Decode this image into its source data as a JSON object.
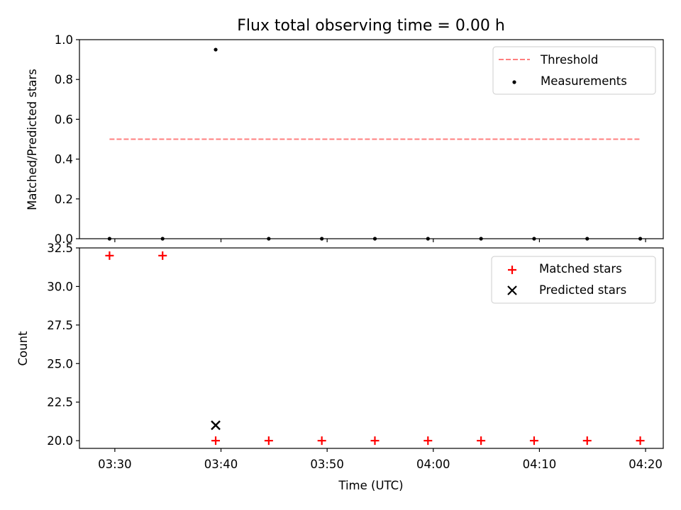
{
  "chart_data": [
    {
      "type": "scatter",
      "title": "Flux total observing time = 0.00 h",
      "xlabel": "",
      "ylabel": "Matched/Predicted stars",
      "ylim": [
        0.0,
        1.0
      ],
      "yticks": [
        "0.0",
        "0.2",
        "0.4",
        "0.6",
        "0.8",
        "1.0"
      ],
      "threshold": {
        "name": "Threshold",
        "value": 0.5,
        "x_start": "03:29:30",
        "x_end": "04:19:30",
        "color": "#ff7f7f",
        "style": "dashed"
      },
      "series": [
        {
          "name": "Measurements",
          "color": "#000000",
          "marker": "dot",
          "x": [
            "03:29:30",
            "03:34:30",
            "03:39:30",
            "03:44:30",
            "03:49:30",
            "03:54:30",
            "03:59:30",
            "04:04:30",
            "04:09:30",
            "04:14:30",
            "04:19:30"
          ],
          "y": [
            0.0,
            0.0,
            0.95,
            0.0,
            0.0,
            0.0,
            0.0,
            0.0,
            0.0,
            0.0,
            0.0
          ]
        }
      ],
      "legend": "top-right",
      "grid": false
    },
    {
      "type": "scatter",
      "title": "",
      "xlabel": "Time (UTC)",
      "ylabel": "Count",
      "ylim": [
        19.5,
        32.5
      ],
      "yticks": [
        "20.0",
        "22.5",
        "25.0",
        "27.5",
        "30.0",
        "32.5"
      ],
      "xlim": [
        "03:26:40",
        "04:21:40"
      ],
      "xticks": [
        "03:30",
        "03:40",
        "03:50",
        "04:00",
        "04:10",
        "04:20"
      ],
      "series": [
        {
          "name": "Matched stars",
          "color": "#ff0000",
          "marker": "plus",
          "x": [
            "03:29:30",
            "03:34:30",
            "03:39:30",
            "03:44:30",
            "03:49:30",
            "03:54:30",
            "03:59:30",
            "04:04:30",
            "04:09:30",
            "04:14:30",
            "04:19:30"
          ],
          "y": [
            32,
            32,
            20,
            20,
            20,
            20,
            20,
            20,
            20,
            20,
            20
          ]
        },
        {
          "name": "Predicted stars",
          "color": "#000000",
          "marker": "x",
          "x": [
            "03:39:30"
          ],
          "y": [
            21
          ]
        }
      ],
      "legend": "top-right",
      "grid": false
    }
  ]
}
